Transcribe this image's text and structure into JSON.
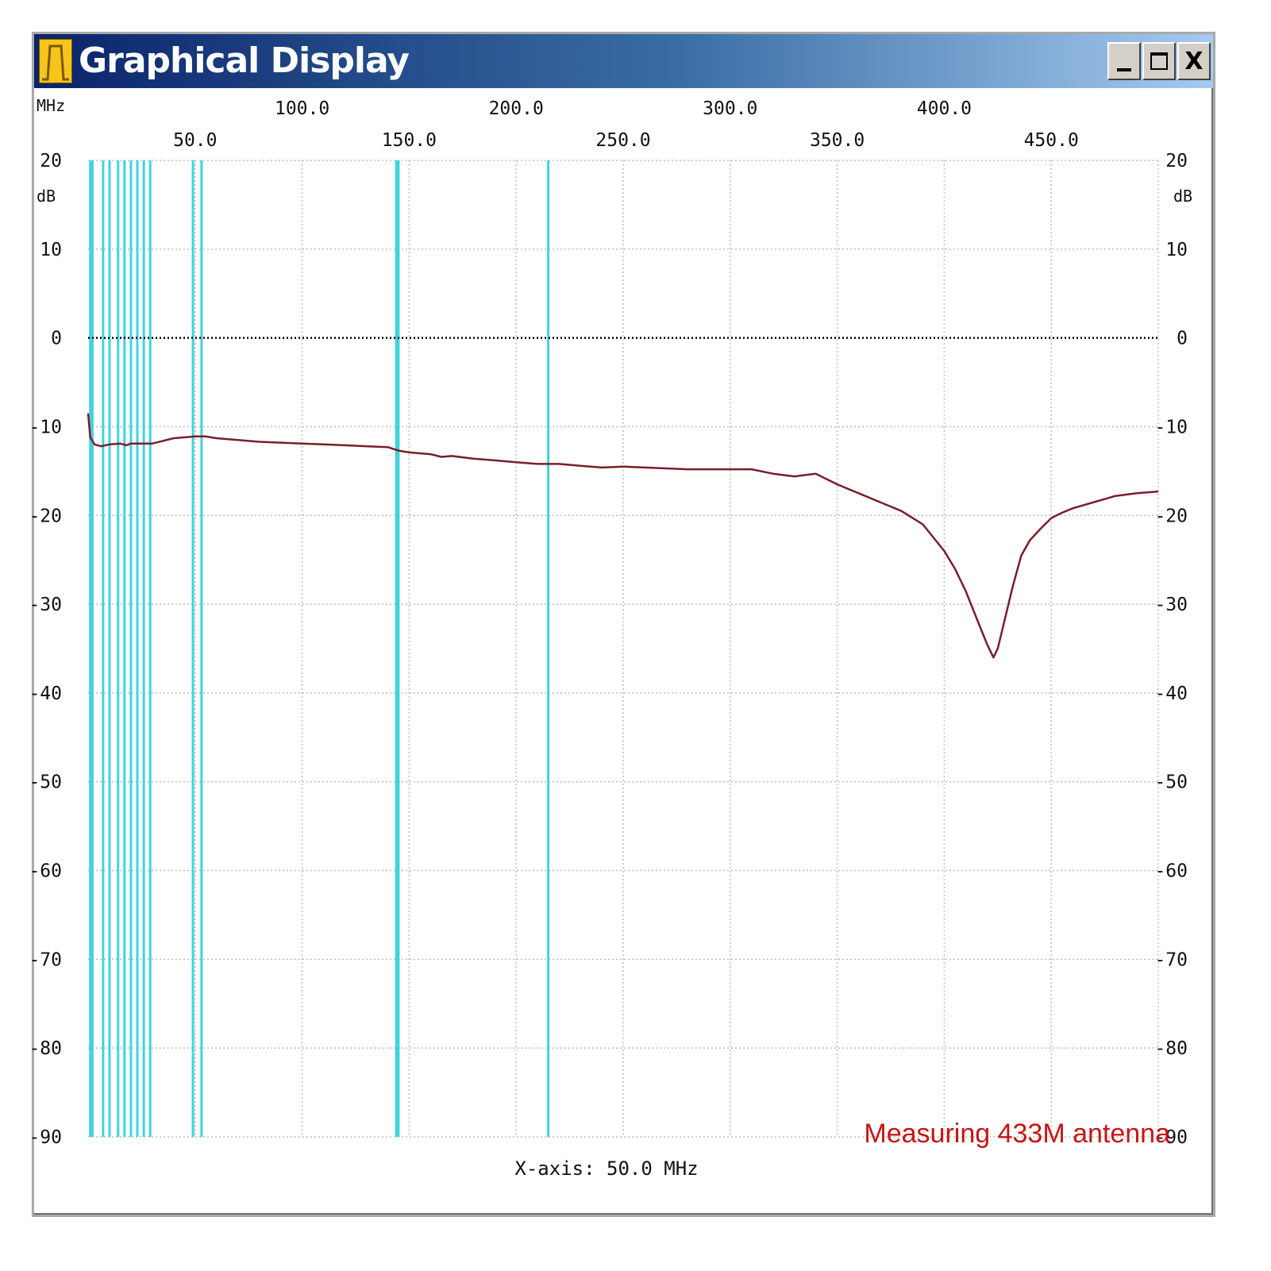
{
  "window": {
    "title": "Graphical Display",
    "controls": {
      "minimize_icon": "minimize-icon",
      "maximize_icon": "maximize-icon",
      "close_label": "X"
    }
  },
  "caption": "Measuring 433M antenna",
  "colors": {
    "title_bar_start": "#0a246a",
    "title_bar_end": "#a6caf0",
    "trace": "#7a1e2a",
    "markers": "#3fd4dc",
    "grid": "#bdbdbd",
    "caption": "#c81414"
  },
  "chart_data": {
    "type": "line",
    "x_unit_label": "MHz",
    "y_unit_label": "dB",
    "x_tick_labels_top": [
      "100.0",
      "200.0",
      "300.0",
      "400.0"
    ],
    "x_tick_labels_bottom": [
      "50.0",
      "150.0",
      "250.0",
      "350.0",
      "450.0"
    ],
    "y_tick_labels": [
      "20",
      "10",
      "0",
      "-10",
      "-20",
      "-30",
      "-40",
      "-50",
      "-60",
      "-70",
      "-80",
      "-90"
    ],
    "x_axis_note": "X-axis: 50.0 MHz",
    "xlim": [
      0,
      500
    ],
    "ylim": [
      -90,
      20
    ],
    "reference_line_db": 0,
    "grid": true,
    "marker_lines_mhz": [
      1,
      2,
      7,
      10,
      14,
      17,
      20,
      23,
      26,
      29,
      49,
      53,
      144,
      145,
      215
    ],
    "series": [
      {
        "x": [
          0,
          1,
          3,
          6,
          10,
          15,
          18,
          20,
          30,
          40,
          50,
          55,
          60,
          70,
          80,
          90,
          100,
          110,
          120,
          130,
          140,
          145,
          150,
          160,
          165,
          170,
          180,
          190,
          200,
          210,
          220,
          230,
          240,
          250,
          260,
          270,
          280,
          290,
          300,
          310,
          320,
          330,
          340,
          350,
          360,
          370,
          380,
          390,
          400,
          405,
          410,
          415,
          420,
          423,
          425,
          428,
          432,
          436,
          440,
          445,
          450,
          455,
          460,
          470,
          480,
          490,
          500
        ],
        "y": [
          -8.5,
          -11.2,
          -12.0,
          -12.2,
          -12.0,
          -11.9,
          -12.1,
          -11.9,
          -11.9,
          -11.3,
          -11.1,
          -11.1,
          -11.3,
          -11.5,
          -11.7,
          -11.8,
          -11.9,
          -12.0,
          -12.1,
          -12.2,
          -12.3,
          -12.7,
          -12.9,
          -13.1,
          -13.4,
          -13.3,
          -13.6,
          -13.8,
          -14.0,
          -14.2,
          -14.2,
          -14.4,
          -14.6,
          -14.5,
          -14.6,
          -14.7,
          -14.8,
          -14.8,
          -14.8,
          -14.8,
          -15.3,
          -15.6,
          -15.3,
          -16.5,
          -17.5,
          -18.5,
          -19.5,
          -21.0,
          -24.0,
          -26.0,
          -28.5,
          -31.5,
          -34.5,
          -36.0,
          -35.0,
          -32.0,
          -28.0,
          -24.5,
          -22.8,
          -21.5,
          -20.3,
          -19.7,
          -19.2,
          -18.5,
          -17.8,
          -17.5,
          -17.3
        ]
      }
    ]
  }
}
